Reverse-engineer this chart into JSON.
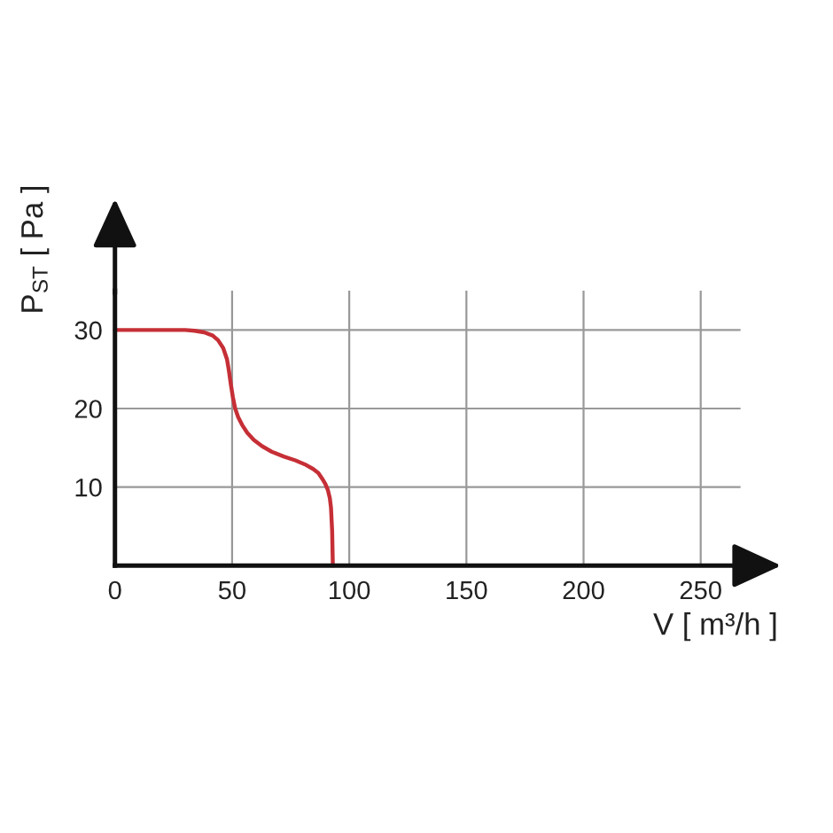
{
  "chart_data": {
    "type": "line",
    "xlabel": "V [ m³/h ]",
    "ylabel": "P$_{ST}$ [ Pa ]",
    "x": [
      0,
      20,
      30,
      34,
      38,
      41.7,
      44,
      46.2,
      47.8,
      48.7,
      49.5,
      50.3,
      51.3,
      52.6,
      54.3,
      56.5,
      59.3,
      62.8,
      66.9,
      72,
      77,
      81,
      84.6,
      86.8,
      88.4,
      89.8,
      90.9,
      91.7,
      92.2,
      92.7,
      93
    ],
    "values": [
      30,
      30,
      30,
      29.9,
      29.7,
      29.3,
      28.7,
      27.7,
      26.3,
      24.7,
      23,
      21.5,
      20,
      18.9,
      17.9,
      16.9,
      16,
      15.2,
      14.5,
      13.9,
      13.4,
      12.9,
      12.3,
      11.8,
      11.1,
      10.4,
      9.6,
      8.6,
      7.4,
      4.4,
      0
    ],
    "color": "#c62f36",
    "xlim": [
      0,
      267
    ],
    "ylim": [
      0,
      35
    ],
    "xticks": [
      0,
      50,
      100,
      150,
      200,
      250
    ],
    "yticks": [
      10,
      20,
      30
    ],
    "grid": true
  }
}
